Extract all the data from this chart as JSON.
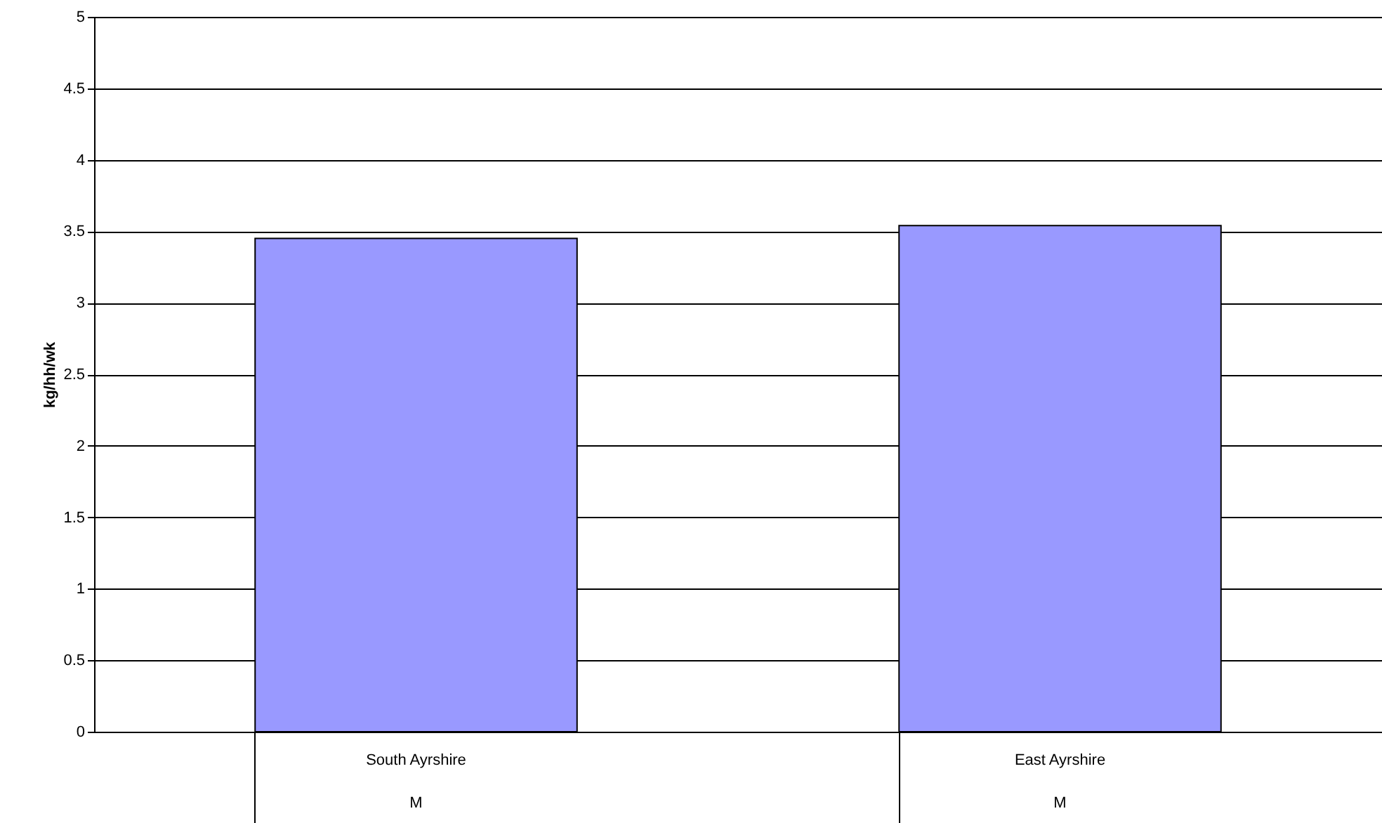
{
  "chart_data": {
    "type": "bar",
    "ylabel": "kg/hh/wk",
    "categories": [
      "South Ayrshire",
      "East Ayrshire"
    ],
    "values": [
      3.45,
      3.54
    ],
    "color": "#9999ff",
    "ylim": [
      0,
      5
    ],
    "yticks": [
      0,
      0.5,
      1,
      1.5,
      2,
      2.5,
      3,
      3.5,
      4,
      4.5,
      5
    ],
    "grid": "y",
    "annotations": [
      "M",
      "M"
    ]
  }
}
